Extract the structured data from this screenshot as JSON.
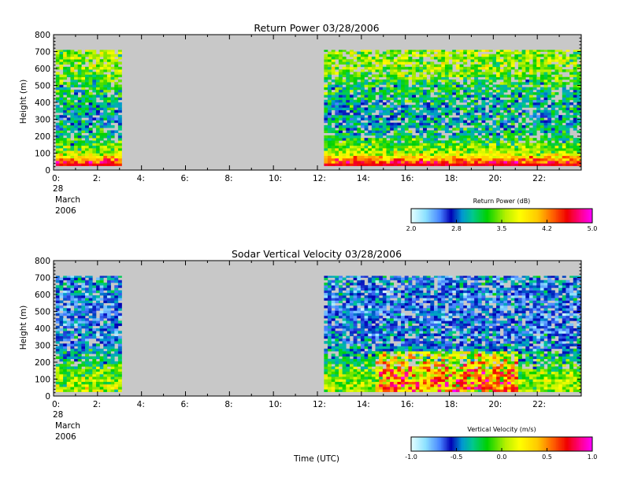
{
  "chart_data": [
    {
      "type": "heatmap",
      "title": "Return Power 03/28/2006",
      "ylabel": "Height (m)",
      "ylim": [
        0,
        800
      ],
      "yticks": [
        "0",
        "100",
        "200",
        "300",
        "400",
        "500",
        "600",
        "700",
        "800"
      ],
      "xlim": [
        0,
        24
      ],
      "xticks": [
        "0:",
        "2:",
        "4:",
        "6:",
        "8:",
        "10:",
        "12:",
        "14:",
        "16:",
        "18:",
        "20:",
        "22:"
      ],
      "date_label": [
        "28",
        "March",
        "2006"
      ],
      "data_segments": [
        [
          0.1,
          3.1
        ],
        [
          12.3,
          24.0
        ]
      ],
      "height_range": [
        25,
        710
      ],
      "no_data_color": "#c8c8c8",
      "colorbar": {
        "title": "Return Power (dB)",
        "min": 2.0,
        "max": 5.0,
        "ticks": [
          "2.0",
          "2.8",
          "3.5",
          "4.2",
          "5.0"
        ]
      },
      "profile_by_height": [
        {
          "height": 50,
          "value": 4.5
        },
        {
          "height": 100,
          "value": 3.6
        },
        {
          "height": 200,
          "value": 3.1
        },
        {
          "height": 300,
          "value": 2.9
        },
        {
          "height": 400,
          "value": 3.0
        },
        {
          "height": 500,
          "value": 3.2
        },
        {
          "height": 600,
          "value": 3.5
        },
        {
          "height": 700,
          "value": 3.5
        }
      ]
    },
    {
      "type": "heatmap",
      "title": "Sodar Vertical Velocity 03/28/2006",
      "ylabel": "Height (m)",
      "xlabel": "Time (UTC)",
      "ylim": [
        0,
        800
      ],
      "yticks": [
        "0",
        "100",
        "200",
        "300",
        "400",
        "500",
        "600",
        "700",
        "800"
      ],
      "xlim": [
        0,
        24
      ],
      "xticks": [
        "0:",
        "2:",
        "4:",
        "6:",
        "8:",
        "10:",
        "12:",
        "14:",
        "16:",
        "18:",
        "20:",
        "22:"
      ],
      "date_label": [
        "28",
        "March",
        "2006"
      ],
      "data_segments": [
        [
          0.1,
          3.1
        ],
        [
          12.3,
          24.0
        ]
      ],
      "height_range": [
        25,
        710
      ],
      "no_data_color": "#c8c8c8",
      "colorbar": {
        "title": "Vertical Velocity (m/s)",
        "min": -1.0,
        "max": 1.0,
        "ticks": [
          "-1.0",
          "-0.5",
          "0.0",
          "0.5",
          "1.0"
        ]
      },
      "profile_by_height": [
        {
          "height": 50,
          "value": 0.05
        },
        {
          "height": 150,
          "value": -0.1
        },
        {
          "height": 300,
          "value": -0.5
        },
        {
          "height": 500,
          "value": -0.6
        },
        {
          "height": 700,
          "value": -0.5
        }
      ]
    }
  ]
}
